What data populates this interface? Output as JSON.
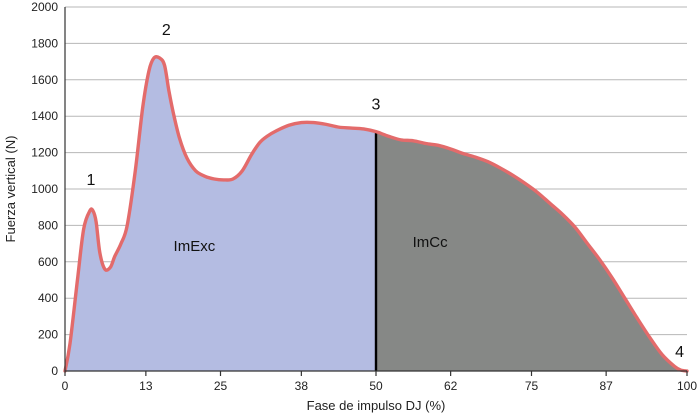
{
  "chart_data": {
    "type": "area",
    "xlabel": "Fase de impulso DJ (%)",
    "ylabel": "Fuerza vertical (N)",
    "xlim": [
      0,
      100
    ],
    "ylim": [
      0,
      2000
    ],
    "x_ticks": [
      0,
      13,
      25,
      38,
      50,
      62,
      75,
      87,
      100
    ],
    "y_ticks": [
      0,
      200,
      400,
      600,
      800,
      1000,
      1200,
      1400,
      1600,
      1800,
      2000
    ],
    "grid": "horizontal",
    "split_x": 50,
    "regions": [
      {
        "label": "ImExc",
        "x_range": [
          0,
          50
        ],
        "fill": "#b4bce2"
      },
      {
        "label": "ImCc",
        "x_range": [
          50,
          100
        ],
        "fill": "#868886"
      }
    ],
    "line_color": "#e36b6b",
    "split_line_color": "#000000",
    "x": [
      0,
      0.8,
      2,
      3,
      4,
      4.5,
      5,
      5.6,
      6.4,
      7.3,
      8,
      9,
      10,
      11.3,
      12.5,
      13.5,
      14.3,
      15.2,
      16,
      16.7,
      17.4,
      18.4,
      19.6,
      21,
      22.5,
      24,
      25.5,
      27,
      28.5,
      30,
      31.3,
      32.5,
      34,
      36,
      38,
      40,
      42,
      44,
      46,
      48,
      50,
      52,
      54,
      56,
      58,
      60,
      62,
      64,
      66,
      68,
      70,
      72,
      74,
      76,
      78,
      80,
      82,
      84,
      86,
      88,
      90,
      92,
      94,
      96,
      98,
      99,
      100
    ],
    "y": [
      0,
      150,
      500,
      780,
      880,
      880,
      820,
      650,
      560,
      570,
      630,
      700,
      800,
      1100,
      1450,
      1650,
      1720,
      1720,
      1680,
      1540,
      1420,
      1280,
      1170,
      1100,
      1070,
      1055,
      1050,
      1055,
      1100,
      1190,
      1255,
      1290,
      1320,
      1350,
      1365,
      1365,
      1355,
      1340,
      1335,
      1330,
      1315,
      1290,
      1270,
      1265,
      1250,
      1240,
      1220,
      1195,
      1175,
      1150,
      1115,
      1075,
      1030,
      980,
      920,
      860,
      790,
      700,
      610,
      510,
      400,
      290,
      185,
      90,
      25,
      5,
      0
    ],
    "annotations": [
      {
        "text": "1",
        "x": 4.5,
        "y": 880
      },
      {
        "text": "2",
        "x": 16.3,
        "y": 1720
      },
      {
        "text": "3",
        "x": 50,
        "y": 1315
      },
      {
        "text": "4",
        "x": 100,
        "y": 0
      }
    ]
  }
}
